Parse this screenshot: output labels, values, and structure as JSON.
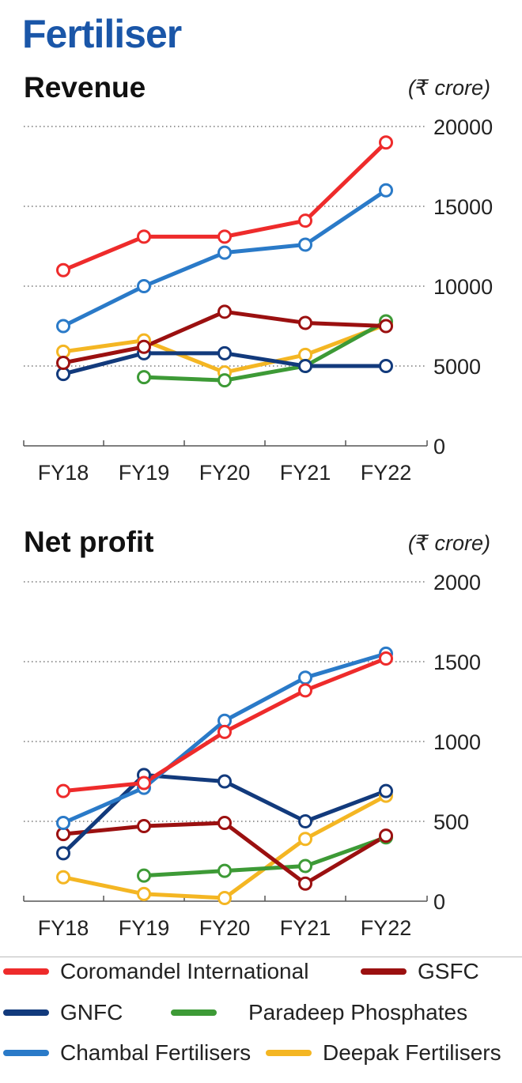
{
  "page_title": "Fertiliser",
  "legend": [
    {
      "name": "Coromandel International",
      "color": "#ee2b2b"
    },
    {
      "name": "GSFC",
      "color": "#9b1010"
    },
    {
      "name": "GNFC",
      "color": "#123a7c"
    },
    {
      "name": "Paradeep Phosphates",
      "color": "#3d9a36"
    },
    {
      "name": "Chambal Fertilisers",
      "color": "#2a7ac8"
    },
    {
      "name": "Deepak Fertilisers",
      "color": "#f4b623"
    }
  ],
  "chart_data": [
    {
      "type": "line",
      "title": "Revenue",
      "unit": "(₹ crore)",
      "categories": [
        "FY18",
        "FY19",
        "FY20",
        "FY21",
        "FY22"
      ],
      "ylim": [
        0,
        20000
      ],
      "yticks": [
        0,
        5000,
        10000,
        15000,
        20000
      ],
      "grid": true,
      "series": [
        {
          "name": "Deepak Fertilisers",
          "color": "#f4b623",
          "values": [
            5900,
            6600,
            4600,
            5700,
            7600
          ]
        },
        {
          "name": "Paradeep Phosphates",
          "color": "#3d9a36",
          "values": [
            null,
            4300,
            4100,
            5000,
            7800
          ]
        },
        {
          "name": "GNFC",
          "color": "#123a7c",
          "values": [
            4500,
            5800,
            5800,
            5000,
            5000
          ]
        },
        {
          "name": "GSFC",
          "color": "#9b1010",
          "values": [
            5200,
            6200,
            8400,
            7700,
            7500
          ]
        },
        {
          "name": "Chambal Fertilisers",
          "color": "#2a7ac8",
          "values": [
            7500,
            10000,
            12100,
            12600,
            16000
          ]
        },
        {
          "name": "Coromandel International",
          "color": "#ee2b2b",
          "values": [
            11000,
            13100,
            13100,
            14100,
            19000
          ]
        }
      ]
    },
    {
      "type": "line",
      "title": "Net profit",
      "unit": "(₹ crore)",
      "categories": [
        "FY18",
        "FY19",
        "FY20",
        "FY21",
        "FY22"
      ],
      "ylim": [
        0,
        2000
      ],
      "yticks": [
        0,
        500,
        1000,
        1500,
        2000
      ],
      "grid": true,
      "series": [
        {
          "name": "Deepak Fertilisers",
          "color": "#f4b623",
          "values": [
            150,
            45,
            20,
            390,
            660
          ]
        },
        {
          "name": "Paradeep Phosphates",
          "color": "#3d9a36",
          "values": [
            null,
            160,
            190,
            220,
            400
          ]
        },
        {
          "name": "GSFC",
          "color": "#9b1010",
          "values": [
            420,
            470,
            490,
            110,
            410
          ]
        },
        {
          "name": "GNFC",
          "color": "#123a7c",
          "values": [
            300,
            790,
            750,
            500,
            690
          ]
        },
        {
          "name": "Chambal Fertilisers",
          "color": "#2a7ac8",
          "values": [
            490,
            710,
            1130,
            1400,
            1550
          ]
        },
        {
          "name": "Coromandel International",
          "color": "#ee2b2b",
          "values": [
            690,
            740,
            1060,
            1320,
            1520
          ]
        }
      ]
    }
  ]
}
